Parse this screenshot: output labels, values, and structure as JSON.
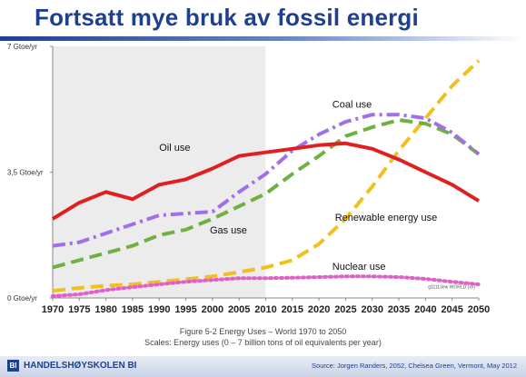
{
  "slide": {
    "title": "Fortsatt mye bruk av fossil energi",
    "caption_line1": "Figure 5-2  Energy Uses – World 1970 to 2050",
    "caption_line2": "Scales: Energy uses (0 – 7 billion tons of oil equivalents per year)",
    "logo_mark": "BI",
    "logo_text": "HANDELSHØYSKOLEN BI",
    "source": "Source: Jorgen Randers, 2052, Chelsea Green, Vermont, May 2012"
  },
  "chart_data": {
    "type": "line",
    "x": [
      1970,
      1975,
      1980,
      1985,
      1990,
      1995,
      2000,
      2005,
      2010,
      2015,
      2020,
      2025,
      2030,
      2035,
      2040,
      2045,
      2050
    ],
    "ylim": [
      0,
      7
    ],
    "yticks": [
      {
        "value": 0,
        "label": "0 Gtoe/yr"
      },
      {
        "value": 3.5,
        "label": "3,5 Gtoe/yr"
      },
      {
        "value": 7,
        "label": "7 Gtoe/yr"
      }
    ],
    "shaded_until": 2010,
    "small_note": "g11113ew WORLD (xx)",
    "series": [
      {
        "name": "Oil use",
        "color": "#e02020",
        "style": "solid",
        "values": [
          2.2,
          2.65,
          2.95,
          2.75,
          3.15,
          3.3,
          3.6,
          3.95,
          4.05,
          4.15,
          4.25,
          4.3,
          4.15,
          3.85,
          3.5,
          3.15,
          2.7
        ]
      },
      {
        "name": "Coal use",
        "color": "#a070e8",
        "style": "dashdot",
        "values": [
          1.45,
          1.55,
          1.8,
          2.05,
          2.3,
          2.35,
          2.4,
          2.95,
          3.45,
          4.1,
          4.55,
          4.9,
          5.1,
          5.1,
          5.0,
          4.6,
          4.0
        ]
      },
      {
        "name": "Gas use",
        "color": "#70b040",
        "style": "dash",
        "values": [
          0.85,
          1.05,
          1.25,
          1.45,
          1.75,
          1.9,
          2.2,
          2.55,
          2.9,
          3.45,
          3.95,
          4.5,
          4.75,
          4.95,
          4.85,
          4.55,
          4.0
        ]
      },
      {
        "name": "Renewable energy use",
        "color": "#f0c020",
        "style": "dash",
        "values": [
          0.2,
          0.28,
          0.34,
          0.38,
          0.45,
          0.52,
          0.6,
          0.72,
          0.85,
          1.05,
          1.5,
          2.2,
          3.1,
          4.1,
          5.0,
          5.9,
          6.6
        ]
      },
      {
        "name": "Nuclear use",
        "color": "#e060c8",
        "style": "dot",
        "values": [
          0.05,
          0.1,
          0.22,
          0.3,
          0.38,
          0.45,
          0.5,
          0.55,
          0.55,
          0.56,
          0.58,
          0.6,
          0.6,
          0.58,
          0.53,
          0.45,
          0.38
        ]
      }
    ]
  }
}
